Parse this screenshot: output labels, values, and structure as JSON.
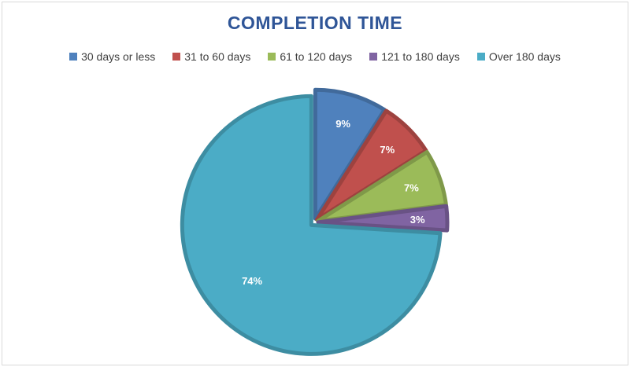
{
  "chart_data": {
    "type": "pie",
    "title": "COMPLETION TIME",
    "categories": [
      "30 days or less",
      "31 to 60 days",
      "61 to 120 days",
      "121 to 180 days",
      "Over 180 days"
    ],
    "values": [
      9,
      7,
      7,
      3,
      74
    ],
    "labels": [
      "9%",
      "7%",
      "7%",
      "3%",
      "74%"
    ],
    "colors": [
      "#4f81bd",
      "#c0504d",
      "#9bbb59",
      "#8064a2",
      "#4bacc6"
    ],
    "legend_position": "top"
  }
}
